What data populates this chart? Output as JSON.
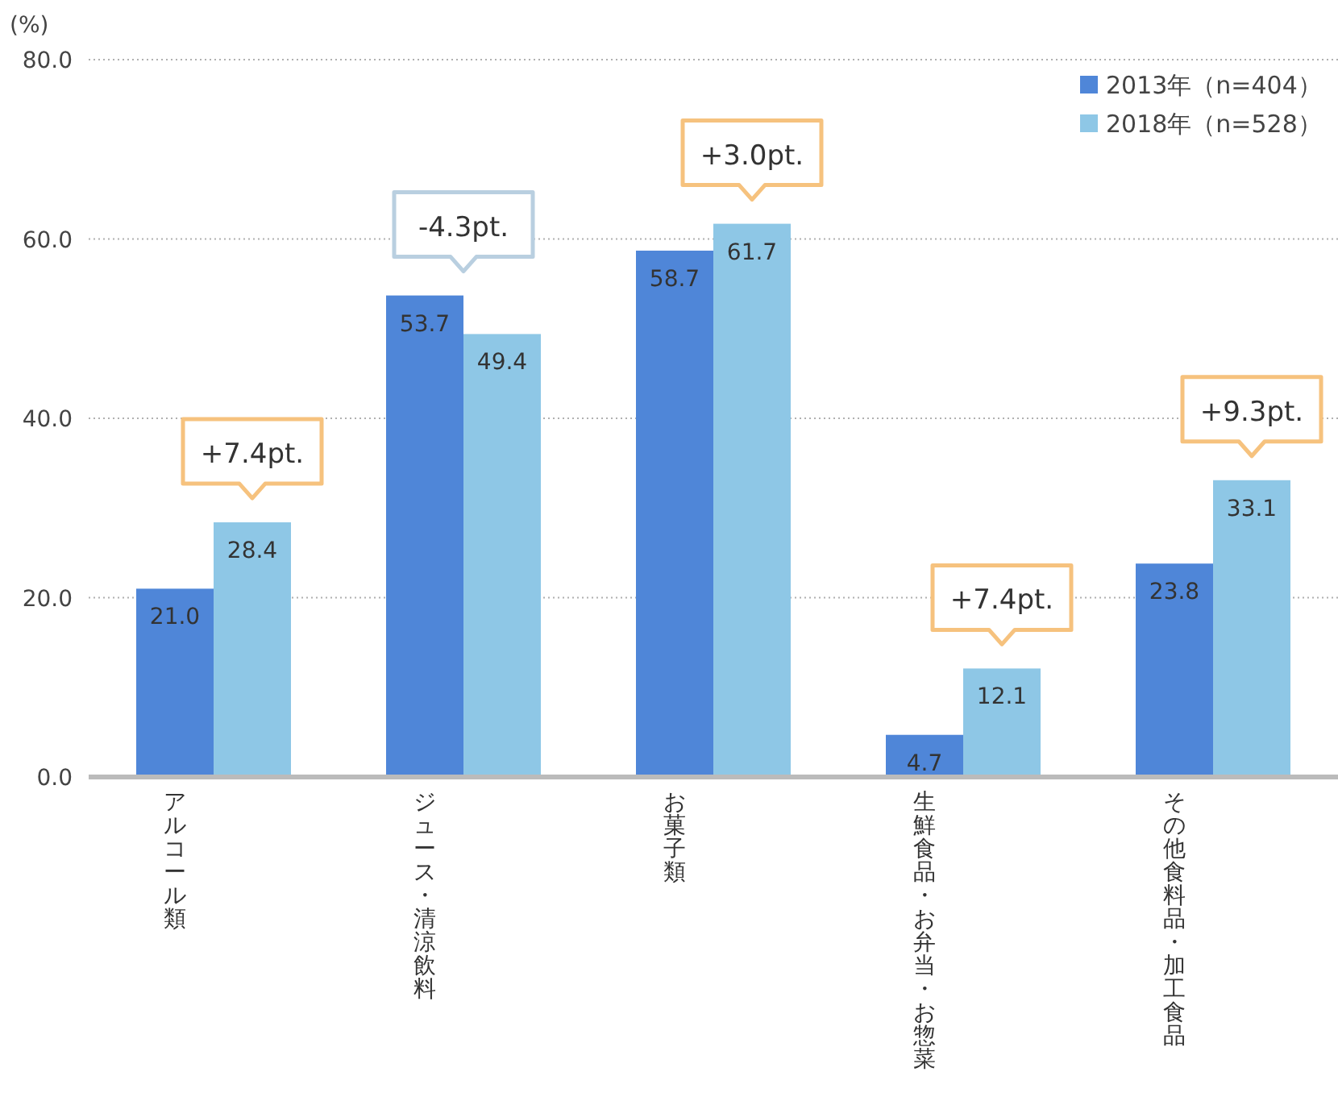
{
  "chart_data": {
    "type": "bar",
    "ylabel": "(%)",
    "categories": [
      "アルコール類",
      "ジュース・清涼飲料",
      "お菓子類",
      "生鮮食品・お弁当・お惣菜",
      "その他食料品・加工食品"
    ],
    "series": [
      {
        "name": "2013年（n=404）",
        "color": "#4f86d8",
        "values": [
          21.0,
          53.7,
          58.7,
          4.7,
          23.8
        ],
        "value_labels": [
          "21.0",
          "53.7",
          "58.7",
          "4.7",
          "23.8"
        ]
      },
      {
        "name": "2018年（n=528）",
        "color": "#8ec7e6",
        "values": [
          28.4,
          49.4,
          61.7,
          12.1,
          33.1
        ],
        "value_labels": [
          "28.4",
          "49.4",
          "61.7",
          "12.1",
          "33.1"
        ]
      }
    ],
    "ylim": [
      0,
      80
    ],
    "yticks": [
      {
        "value": 0,
        "label": "0.0"
      },
      {
        "value": 20,
        "label": "20.0"
      },
      {
        "value": 40,
        "label": "40.0"
      },
      {
        "value": 60,
        "label": "60.0"
      },
      {
        "value": 80,
        "label": "80.0"
      }
    ],
    "grid": "y",
    "legend": "top right",
    "annotations": [
      "+7.4pt.",
      "-4.3pt.",
      "+3.0pt.",
      "+7.4pt.",
      "+9.3pt."
    ]
  }
}
